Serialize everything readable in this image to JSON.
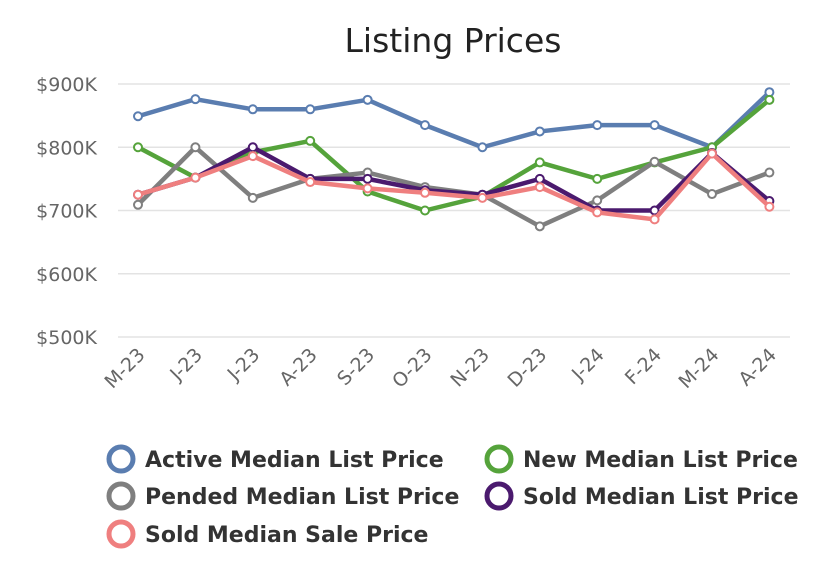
{
  "chart_data": {
    "type": "line",
    "title": "Listing Prices",
    "xlabel": "",
    "ylabel": "",
    "categories": [
      "M-23",
      "J-23",
      "J-23",
      "A-23",
      "S-23",
      "O-23",
      "N-23",
      "D-23",
      "J-24",
      "F-24",
      "M-24",
      "A-24"
    ],
    "ylim": [
      500,
      900
    ],
    "yticks": [
      500,
      600,
      700,
      800,
      900
    ],
    "ytick_labels": [
      "$500K",
      "$600K",
      "$700K",
      "$800K",
      "$900K"
    ],
    "grid": true,
    "legend_position": "bottom",
    "series": [
      {
        "name": "Active Median List Price",
        "color": "#5a7db0",
        "values": [
          849,
          876,
          860,
          860,
          875,
          835,
          800,
          825,
          835,
          835,
          800,
          887
        ]
      },
      {
        "name": "New Median List Price",
        "color": "#55a33b",
        "values": [
          800,
          752,
          792,
          810,
          730,
          700,
          722,
          776,
          750,
          776,
          800,
          875
        ]
      },
      {
        "name": "Pended Median List Price",
        "color": "#7f7f7f",
        "values": [
          709,
          800,
          720,
          750,
          760,
          737,
          725,
          675,
          716,
          777,
          726,
          760
        ]
      },
      {
        "name": "Sold Median List Price",
        "color": "#4b1a6e",
        "values": [
          725,
          752,
          800,
          750,
          750,
          732,
          725,
          750,
          700,
          700,
          791,
          715
        ]
      },
      {
        "name": "Sold Median Sale Price",
        "color": "#ef7f7f",
        "values": [
          725,
          752,
          786,
          745,
          735,
          728,
          720,
          737,
          697,
          686,
          790,
          706
        ]
      }
    ]
  }
}
